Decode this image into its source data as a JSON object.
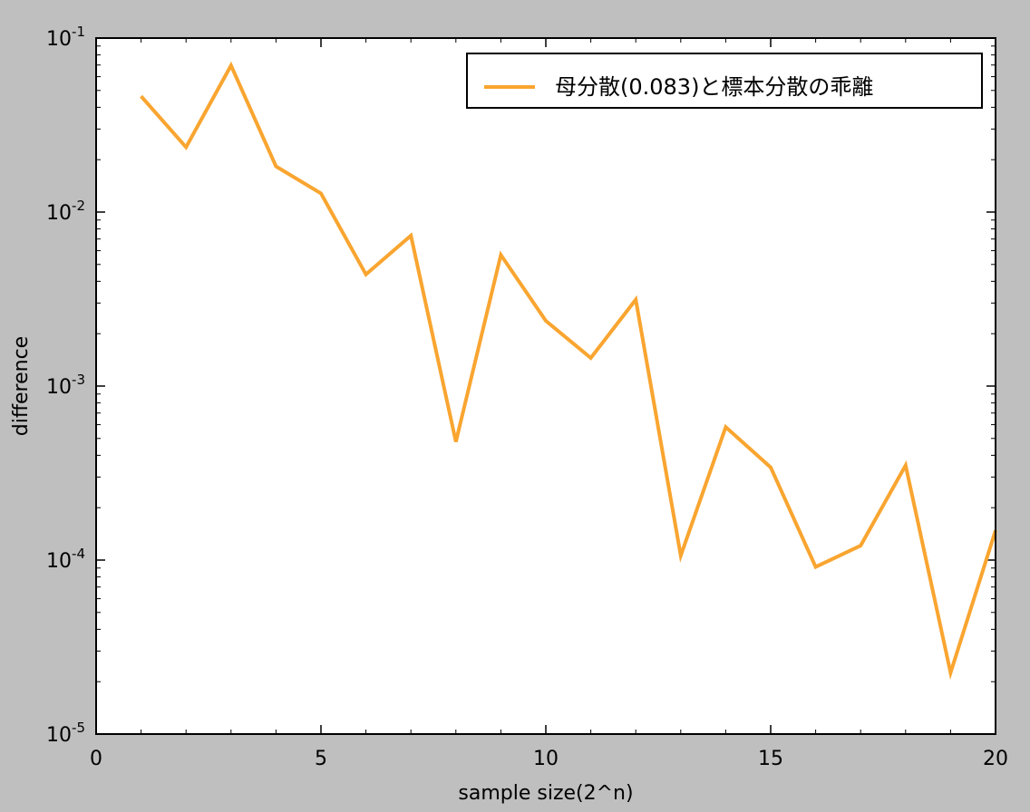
{
  "chart_data": {
    "type": "line",
    "title": "",
    "xlabel": "sample size(2^n)",
    "ylabel": "difference",
    "xlim": [
      0,
      20
    ],
    "ylim": [
      1e-05,
      0.1
    ],
    "yscale": "log",
    "grid": false,
    "legend_position": "top-right",
    "x_ticks": [
      0,
      5,
      10,
      15,
      20
    ],
    "y_ticks": [
      {
        "value": 0.1,
        "base": "10",
        "exp": "-1"
      },
      {
        "value": 0.01,
        "base": "10",
        "exp": "-2"
      },
      {
        "value": 0.001,
        "base": "10",
        "exp": "-3"
      },
      {
        "value": 0.0001,
        "base": "10",
        "exp": "-4"
      },
      {
        "value": 1e-05,
        "base": "10",
        "exp": "-5"
      }
    ],
    "series": [
      {
        "name": "母分散(0.083)と標本分散の乖離",
        "color": "#f9a530",
        "x": [
          1,
          2,
          3,
          4,
          5,
          6,
          7,
          8,
          9,
          10,
          11,
          12,
          13,
          14,
          15,
          16,
          17,
          18,
          19,
          20
        ],
        "y": [
          0.0463,
          0.0236,
          0.0695,
          0.0183,
          0.0128,
          0.00438,
          0.00732,
          0.000478,
          0.00567,
          0.00237,
          0.00145,
          0.00314,
          0.000106,
          0.000581,
          0.000341,
          9.13e-05,
          0.000121,
          0.00035,
          2.25e-05,
          0.000148
        ]
      }
    ]
  }
}
